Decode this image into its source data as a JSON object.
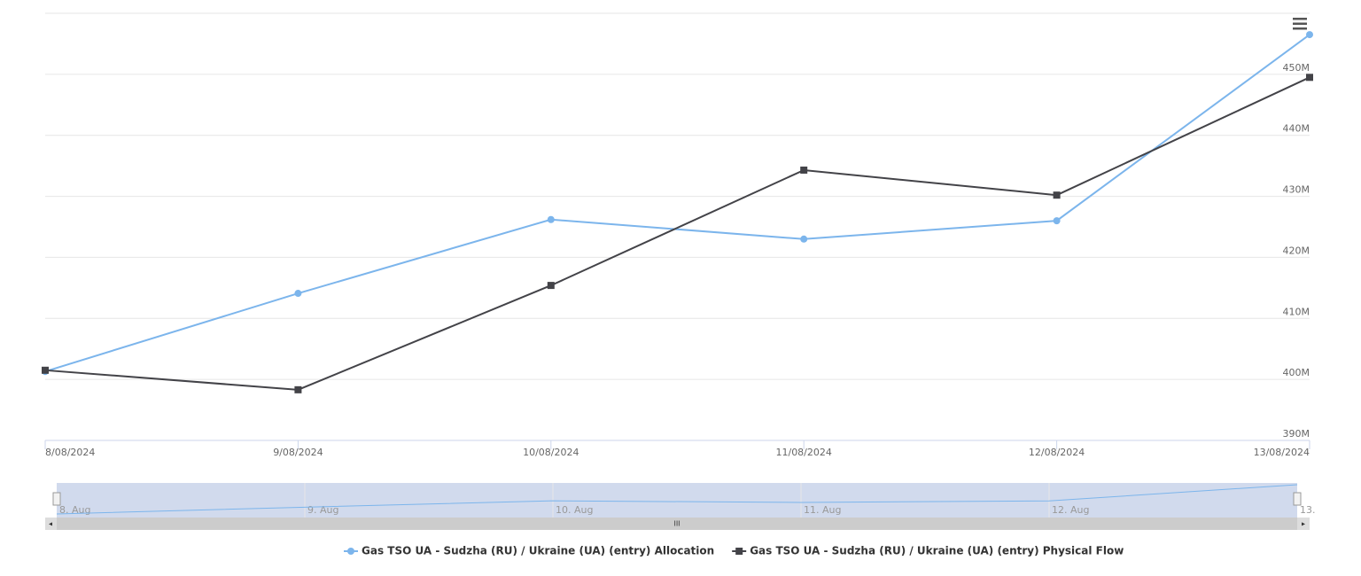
{
  "chart_data": {
    "type": "line",
    "categories": [
      "8/08/2024",
      "9/08/2024",
      "10/08/2024",
      "11/08/2024",
      "12/08/2024",
      "13/08/2024"
    ],
    "series": [
      {
        "name": "Gas TSO UA - Sudzha (RU) / Ukraine (UA) (entry) Allocation",
        "color": "#7cb5ec",
        "marker": "circle",
        "values": [
          401300000,
          414100000,
          426200000,
          423000000,
          426000000,
          456500000
        ]
      },
      {
        "name": "Gas TSO UA - Sudzha (RU) / Ukraine (UA) (entry) Physical Flow",
        "color": "#434348",
        "marker": "square",
        "values": [
          401500000,
          398300000,
          415400000,
          434300000,
          430200000,
          449500000
        ]
      }
    ],
    "ylim": [
      390000000,
      460000000
    ],
    "yticks": [
      {
        "value": 390000000,
        "label": "390M"
      },
      {
        "value": 400000000,
        "label": "400M"
      },
      {
        "value": 410000000,
        "label": "410M"
      },
      {
        "value": 420000000,
        "label": "420M"
      },
      {
        "value": 430000000,
        "label": "430M"
      },
      {
        "value": 440000000,
        "label": "440M"
      },
      {
        "value": 450000000,
        "label": "450M"
      }
    ],
    "grid": true,
    "navigator_labels": [
      "8. Aug",
      "9. Aug",
      "10. Aug",
      "11. Aug",
      "12. Aug",
      "13."
    ]
  }
}
